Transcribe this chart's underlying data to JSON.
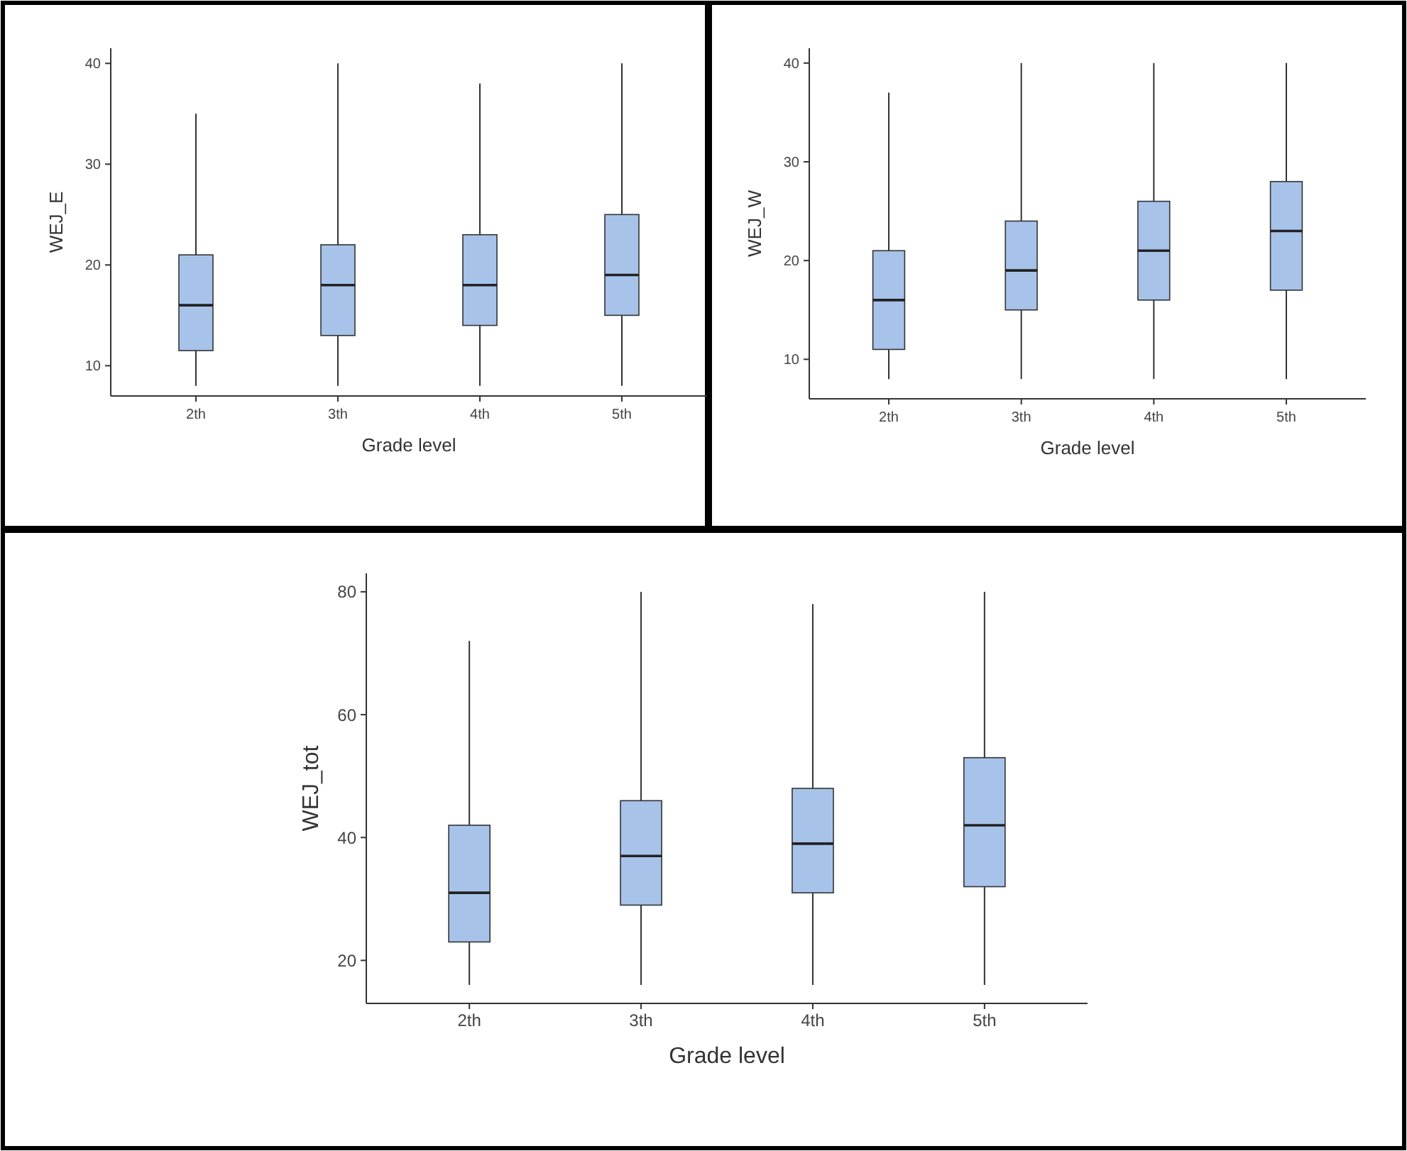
{
  "chart_data": [
    {
      "type": "box",
      "xlabel": "Grade level",
      "ylabel": "WEJ_E",
      "categories": [
        "2th",
        "3th",
        "4th",
        "5th"
      ],
      "ylim": [
        7,
        41.5
      ],
      "yticks": [
        10,
        20,
        30,
        40
      ],
      "color": "#a7c3ea",
      "boxes": [
        {
          "low": 8,
          "q1": 11.5,
          "median": 16,
          "q3": 21,
          "high": 35
        },
        {
          "low": 8,
          "q1": 13,
          "median": 18,
          "q3": 22,
          "high": 40
        },
        {
          "low": 8,
          "q1": 14,
          "median": 18,
          "q3": 23,
          "high": 38
        },
        {
          "low": 8,
          "q1": 15,
          "median": 19,
          "q3": 25,
          "high": 40
        }
      ]
    },
    {
      "type": "box",
      "xlabel": "Grade level",
      "ylabel": "WEJ_W",
      "categories": [
        "2th",
        "3th",
        "4th",
        "5th"
      ],
      "ylim": [
        6,
        41.5
      ],
      "yticks": [
        10,
        20,
        30,
        40
      ],
      "color": "#a7c3ea",
      "boxes": [
        {
          "low": 8,
          "q1": 11,
          "median": 16,
          "q3": 21,
          "high": 37
        },
        {
          "low": 8,
          "q1": 15,
          "median": 19,
          "q3": 24,
          "high": 40
        },
        {
          "low": 8,
          "q1": 16,
          "median": 21,
          "q3": 26,
          "high": 40
        },
        {
          "low": 8,
          "q1": 17,
          "median": 23,
          "q3": 28,
          "high": 40
        }
      ]
    },
    {
      "type": "box",
      "xlabel": "Grade level",
      "ylabel": "WEJ_tot",
      "categories": [
        "2th",
        "3th",
        "4th",
        "5th"
      ],
      "ylim": [
        13,
        83
      ],
      "yticks": [
        20,
        40,
        60,
        80
      ],
      "color": "#a7c3ea",
      "boxes": [
        {
          "low": 16,
          "q1": 23,
          "median": 31,
          "q3": 42,
          "high": 72
        },
        {
          "low": 16,
          "q1": 29,
          "median": 37,
          "q3": 46,
          "high": 80
        },
        {
          "low": 16,
          "q1": 31,
          "median": 39,
          "q3": 48,
          "high": 78
        },
        {
          "low": 16,
          "q1": 32,
          "median": 42,
          "q3": 53,
          "high": 80
        }
      ]
    }
  ]
}
